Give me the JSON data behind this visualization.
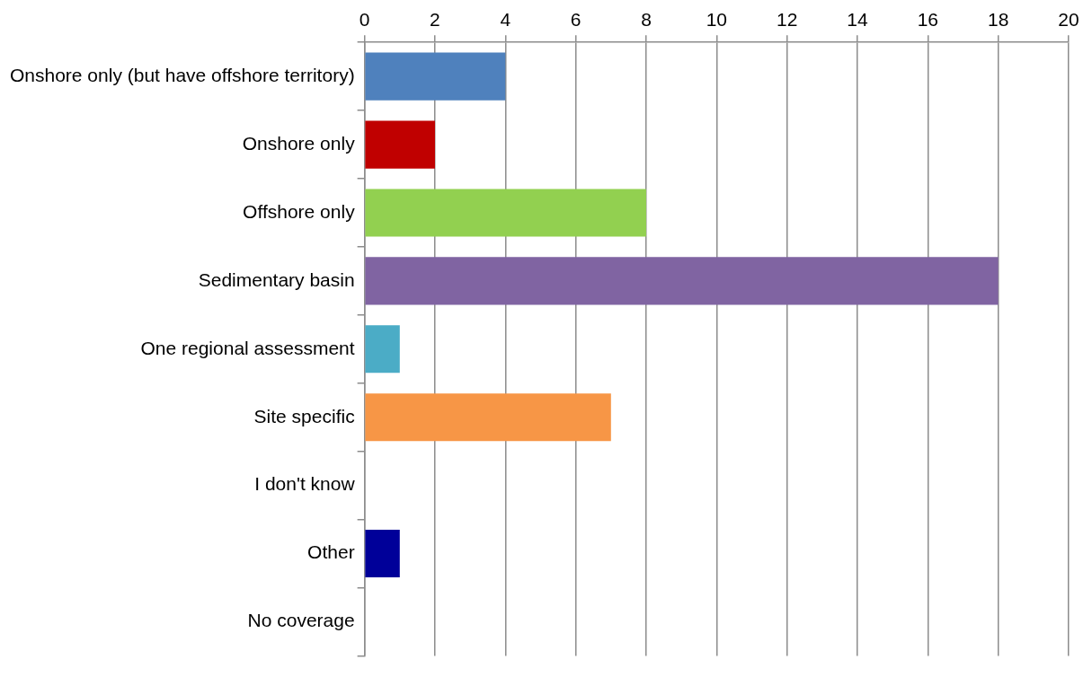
{
  "chart_data": {
    "type": "bar",
    "orientation": "horizontal",
    "categories": [
      "Onshore only (but have offshore territory)",
      "Onshore only",
      "Offshore only",
      "Sedimentary basin",
      "One regional assessment",
      "Site specific",
      "I don't know",
      "Other",
      "No coverage"
    ],
    "values": [
      4,
      2,
      8,
      18,
      1,
      7,
      0,
      1,
      0
    ],
    "colors": [
      "#4f81bd",
      "#c00000",
      "#92d050",
      "#8064a2",
      "#4bacc6",
      "#f79646",
      "#ffc000",
      "#000099",
      "#7f7f7f"
    ],
    "xlim": [
      0,
      20
    ],
    "xticks": [
      0,
      2,
      4,
      6,
      8,
      10,
      12,
      14,
      16,
      18,
      20
    ],
    "grid": "x",
    "legend": false
  }
}
